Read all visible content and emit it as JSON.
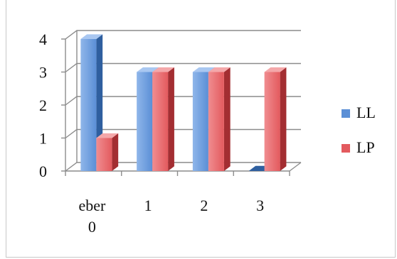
{
  "chart_data": {
    "type": "bar",
    "subtype": "3d-clustered-column",
    "title": "",
    "xlabel": "",
    "ylabel": "",
    "categories": [
      "eber 0",
      "1",
      "2",
      "3"
    ],
    "series": [
      {
        "name": "LL",
        "values": [
          4,
          3,
          3,
          0
        ]
      },
      {
        "name": "LP",
        "values": [
          1,
          3,
          3,
          3
        ]
      }
    ],
    "ylim": [
      0,
      4
    ],
    "yticks": [
      "0",
      "1",
      "2",
      "3",
      "4"
    ],
    "grid": true,
    "legend": "right",
    "colors": {
      "LL": {
        "front": "#5b8fd6",
        "light": "#8fb6ea",
        "top": "#a9c7f1",
        "side": "#2f5f9f"
      },
      "LP": {
        "front": "#e35a5e",
        "light": "#f08d90",
        "top": "#f4a8aa",
        "side": "#a32e32"
      }
    }
  }
}
